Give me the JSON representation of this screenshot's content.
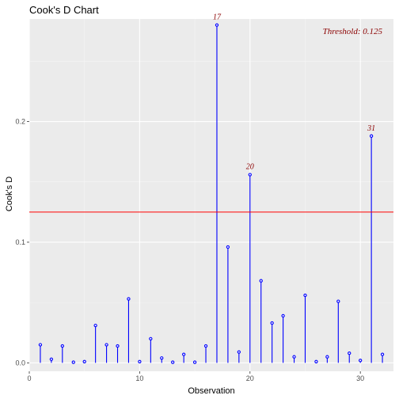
{
  "colors": {
    "panel": "#ebebeb",
    "grid_major": "#ffffff",
    "grid_minor": "#f5f5f5",
    "stem": "#0000ff",
    "threshold_line": "#ff0000",
    "label_text": "#8b0000"
  },
  "chart_data": {
    "type": "scatter",
    "title": "Cook's D Chart",
    "xlabel": "Observation",
    "ylabel": "Cook's D",
    "xlim": [
      0,
      33
    ],
    "ylim": [
      -0.007,
      0.285
    ],
    "x_ticks": [
      0,
      10,
      20,
      30
    ],
    "x_tick_labels": [
      "0",
      "10",
      "20",
      "30"
    ],
    "y_ticks": [
      0.0,
      0.1,
      0.2
    ],
    "y_tick_labels": [
      "0.0",
      "0.1",
      "0.2"
    ],
    "x_minor_ticks": [
      5,
      15,
      25
    ],
    "y_minor_ticks": [
      0.05,
      0.15,
      0.25
    ],
    "grid": true,
    "threshold": 0.125,
    "threshold_text": "Threshold: 0.125",
    "series": [
      {
        "x": [
          1,
          2,
          3,
          4,
          5,
          6,
          7,
          8,
          9,
          10,
          11,
          12,
          13,
          14,
          15,
          16,
          17,
          18,
          19,
          20,
          21,
          22,
          23,
          24,
          25,
          26,
          27,
          28,
          29,
          30,
          31,
          32
        ],
        "values": [
          0.015,
          0.003,
          0.014,
          0.0005,
          0.001,
          0.031,
          0.015,
          0.014,
          0.053,
          0.001,
          0.02,
          0.004,
          0.0005,
          0.007,
          0.0005,
          0.014,
          0.28,
          0.096,
          0.009,
          0.156,
          0.068,
          0.033,
          0.039,
          0.005,
          0.056,
          0.001,
          0.005,
          0.051,
          0.008,
          0.002,
          0.188,
          0.007
        ]
      }
    ],
    "annotations": [
      {
        "x": 17,
        "y": 0.28,
        "text": "17"
      },
      {
        "x": 20,
        "y": 0.156,
        "text": "20"
      },
      {
        "x": 31,
        "y": 0.188,
        "text": "31"
      }
    ]
  }
}
